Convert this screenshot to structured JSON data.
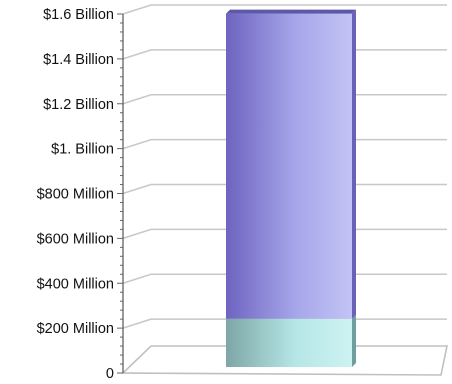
{
  "chart_data": {
    "type": "bar",
    "stacked": true,
    "style": "3d",
    "categories": [
      ""
    ],
    "series": [
      {
        "values": [
          215000000
        ],
        "color": "#a8e0e0"
      },
      {
        "values": [
          1360000000
        ],
        "color": "#8a86dc"
      }
    ],
    "ylim": [
      0,
      1600000000
    ],
    "y_ticks": [
      {
        "value": 0,
        "label": "0"
      },
      {
        "value": 200000000,
        "label": "$200 Million"
      },
      {
        "value": 400000000,
        "label": "$400 Million"
      },
      {
        "value": 600000000,
        "label": "$600 Million"
      },
      {
        "value": 800000000,
        "label": "$800 Million"
      },
      {
        "value": 1000000000,
        "label": "$1. Billion"
      },
      {
        "value": 1200000000,
        "label": "$1.2 Billion"
      },
      {
        "value": 1400000000,
        "label": "$1.4 Billion"
      },
      {
        "value": 1600000000,
        "label": "$1.6 Billion"
      }
    ],
    "grid": true,
    "legend": "none"
  }
}
